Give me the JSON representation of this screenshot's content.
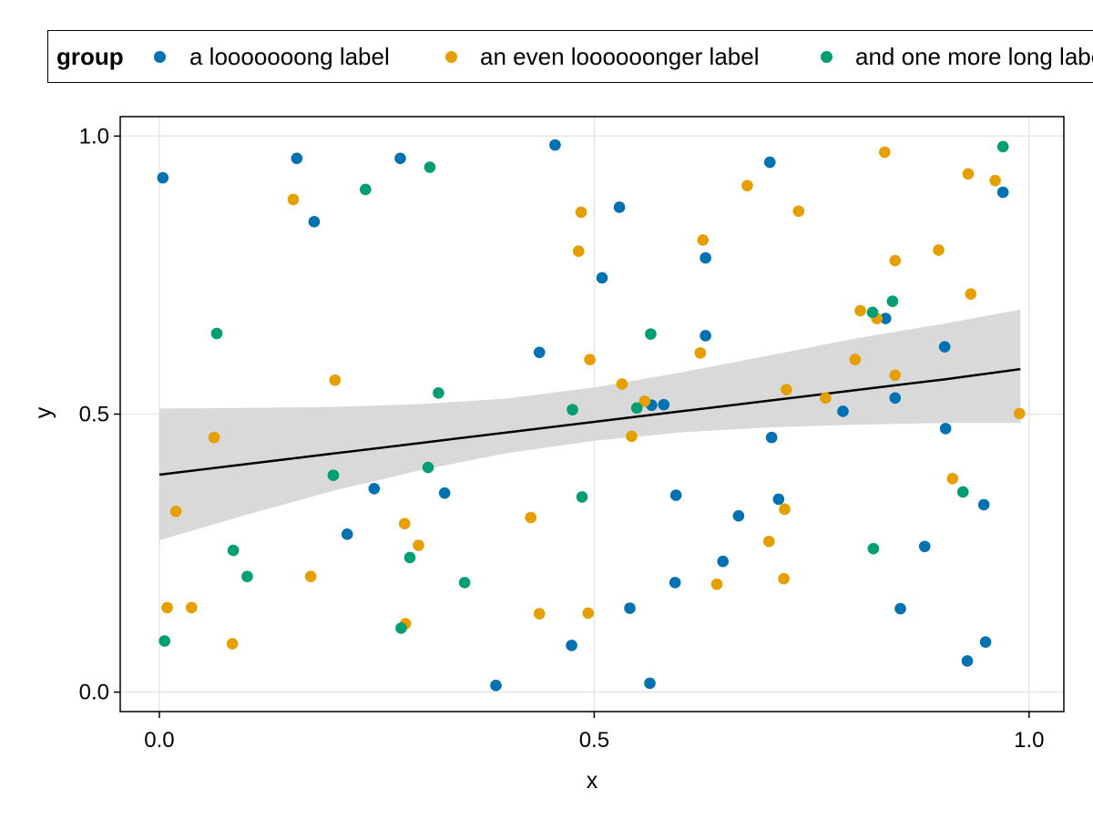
{
  "chart_data": {
    "type": "scatter",
    "xlabel": "x",
    "ylabel": "y",
    "xlim": [
      -0.045,
      1.04
    ],
    "ylim": [
      -0.035,
      1.035
    ],
    "xticks": [
      "0.0",
      "0.5",
      "1.0"
    ],
    "xtick_values": [
      0,
      0.5,
      1
    ],
    "yticks": [
      "0.0",
      "0.5",
      "1.0"
    ],
    "ytick_values": [
      0,
      0.5,
      1
    ],
    "grid": true,
    "legend": {
      "title": "group",
      "position": "top",
      "entries": [
        "a looooooong label",
        "an even loooooonger label",
        "and one more long label"
      ]
    },
    "colors": [
      "#0072b2",
      "#e69f00",
      "#009e73"
    ],
    "series": [
      {
        "name": "a looooooong label",
        "points": [
          [
            0.004,
            0.925
          ],
          [
            0.158,
            0.96
          ],
          [
            0.178,
            0.846
          ],
          [
            0.277,
            0.96
          ],
          [
            0.455,
            0.984
          ],
          [
            0.529,
            0.872
          ],
          [
            0.509,
            0.745
          ],
          [
            0.437,
            0.611
          ],
          [
            0.628,
            0.781
          ],
          [
            0.628,
            0.641
          ],
          [
            0.702,
            0.953
          ],
          [
            0.835,
            0.672
          ],
          [
            0.846,
            0.529
          ],
          [
            0.903,
            0.621
          ],
          [
            0.904,
            0.474
          ],
          [
            0.97,
            0.899
          ],
          [
            0.786,
            0.505
          ],
          [
            0.566,
            0.516
          ],
          [
            0.58,
            0.517
          ],
          [
            0.247,
            0.366
          ],
          [
            0.328,
            0.358
          ],
          [
            0.216,
            0.284
          ],
          [
            0.594,
            0.354
          ],
          [
            0.704,
            0.458
          ],
          [
            0.666,
            0.317
          ],
          [
            0.712,
            0.347
          ],
          [
            0.948,
            0.337
          ],
          [
            0.648,
            0.235
          ],
          [
            0.593,
            0.197
          ],
          [
            0.541,
            0.151
          ],
          [
            0.852,
            0.15
          ],
          [
            0.88,
            0.262
          ],
          [
            0.474,
            0.084
          ],
          [
            0.95,
            0.09
          ],
          [
            0.929,
            0.056
          ],
          [
            0.387,
            0.012
          ],
          [
            0.564,
            0.016
          ]
        ]
      },
      {
        "name": "an even loooooonger label",
        "points": [
          [
            0.154,
            0.886
          ],
          [
            0.485,
            0.863
          ],
          [
            0.482,
            0.793
          ],
          [
            0.676,
            0.911
          ],
          [
            0.735,
            0.865
          ],
          [
            0.834,
            0.971
          ],
          [
            0.93,
            0.932
          ],
          [
            0.961,
            0.92
          ],
          [
            0.625,
            0.813
          ],
          [
            0.846,
            0.776
          ],
          [
            0.896,
            0.795
          ],
          [
            0.806,
            0.686
          ],
          [
            0.825,
            0.672
          ],
          [
            0.933,
            0.716
          ],
          [
            0.622,
            0.61
          ],
          [
            0.495,
            0.598
          ],
          [
            0.8,
            0.598
          ],
          [
            0.846,
            0.57
          ],
          [
            0.202,
            0.561
          ],
          [
            0.532,
            0.554
          ],
          [
            0.721,
            0.544
          ],
          [
            0.558,
            0.523
          ],
          [
            0.766,
            0.529
          ],
          [
            0.989,
            0.501
          ],
          [
            0.063,
            0.458
          ],
          [
            0.543,
            0.46
          ],
          [
            0.019,
            0.325
          ],
          [
            0.719,
            0.329
          ],
          [
            0.427,
            0.314
          ],
          [
            0.282,
            0.303
          ],
          [
            0.298,
            0.264
          ],
          [
            0.701,
            0.271
          ],
          [
            0.174,
            0.208
          ],
          [
            0.718,
            0.204
          ],
          [
            0.641,
            0.194
          ],
          [
            0.912,
            0.384
          ],
          [
            0.009,
            0.152
          ],
          [
            0.037,
            0.152
          ],
          [
            0.437,
            0.141
          ],
          [
            0.493,
            0.142
          ],
          [
            0.283,
            0.123
          ],
          [
            0.084,
            0.087
          ]
        ]
      },
      {
        "name": "and one more long label",
        "points": [
          [
            0.066,
            0.645
          ],
          [
            0.237,
            0.904
          ],
          [
            0.311,
            0.944
          ],
          [
            0.97,
            0.981
          ],
          [
            0.82,
            0.683
          ],
          [
            0.843,
            0.703
          ],
          [
            0.565,
            0.644
          ],
          [
            0.321,
            0.538
          ],
          [
            0.475,
            0.508
          ],
          [
            0.549,
            0.511
          ],
          [
            0.2,
            0.39
          ],
          [
            0.309,
            0.404
          ],
          [
            0.486,
            0.351
          ],
          [
            0.924,
            0.36
          ],
          [
            0.085,
            0.255
          ],
          [
            0.101,
            0.208
          ],
          [
            0.288,
            0.242
          ],
          [
            0.351,
            0.197
          ],
          [
            0.821,
            0.258
          ],
          [
            0.006,
            0.092
          ],
          [
            0.278,
            0.115
          ]
        ]
      }
    ],
    "regression": {
      "name": "linear fit with confidence band",
      "x": [
        0.0,
        0.1,
        0.2,
        0.3,
        0.4,
        0.5,
        0.6,
        0.7,
        0.8,
        0.9,
        0.99
      ],
      "fit": [
        0.391,
        0.41,
        0.429,
        0.448,
        0.467,
        0.486,
        0.505,
        0.524,
        0.543,
        0.562,
        0.581
      ],
      "lower": [
        0.273,
        0.319,
        0.362,
        0.399,
        0.43,
        0.452,
        0.467,
        0.476,
        0.481,
        0.484,
        0.484
      ],
      "upper": [
        0.51,
        0.511,
        0.513,
        0.518,
        0.528,
        0.548,
        0.575,
        0.605,
        0.636,
        0.662,
        0.688
      ],
      "line_color": "#000000",
      "band_color": "#d9d9d9"
    }
  }
}
